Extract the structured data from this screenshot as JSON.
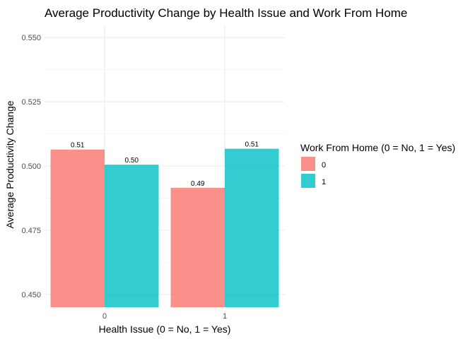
{
  "chart_data": {
    "type": "bar",
    "title": "Average Productivity Change by Health Issue and Work From Home",
    "xlabel": "Health Issue (0 = No, 1 = Yes)",
    "ylabel": "Average Productivity Change",
    "categories": [
      "0",
      "1"
    ],
    "series": [
      {
        "name": "0",
        "color": "#F8766D",
        "values": [
          0.5064,
          0.4915
        ],
        "labels": [
          "0.51",
          "0.49"
        ]
      },
      {
        "name": "1",
        "color": "#00BFC4",
        "values": [
          0.5005,
          0.5067
        ],
        "labels": [
          "0.50",
          "0.51"
        ]
      }
    ],
    "ylim": [
      0.445,
      0.555
    ],
    "yticks": [
      0.45,
      0.475,
      0.5,
      0.525,
      0.55
    ],
    "ytick_labels": [
      "0.450",
      "0.475",
      "0.500",
      "0.525",
      "0.550"
    ],
    "grid": true,
    "legend": {
      "title": "Work From Home (0 = No, 1 = Yes)",
      "position": "right",
      "entries": [
        "0",
        "1"
      ]
    }
  }
}
